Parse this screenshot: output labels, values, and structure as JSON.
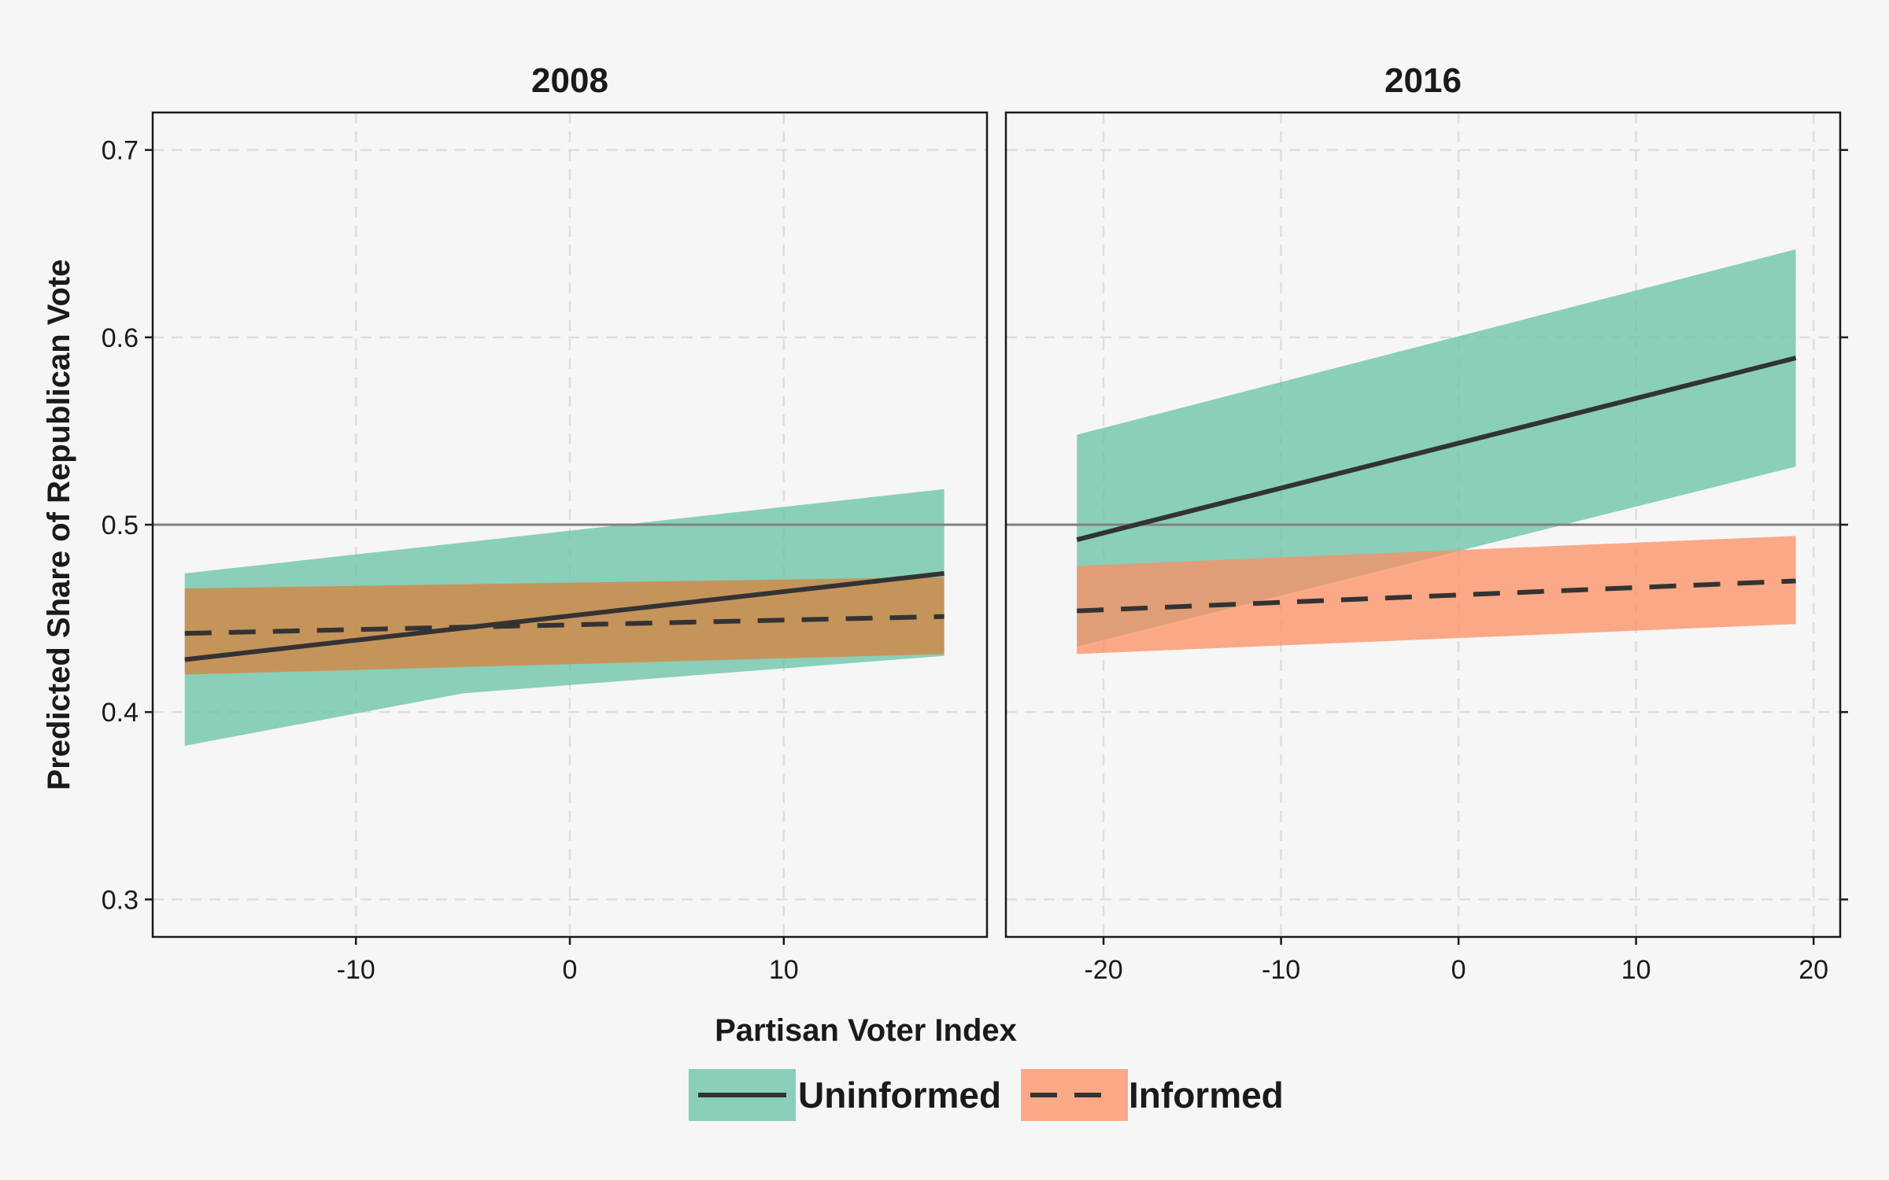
{
  "chart_data": {
    "type": "line",
    "xlabel": "Partisan Voter Index",
    "ylabel": "Predicted Share of Republican Vote",
    "ylim": [
      0.28,
      0.72
    ],
    "yticks": [
      0.3,
      0.4,
      0.5,
      0.6,
      0.7
    ],
    "reference_line_y": 0.5,
    "grid": true,
    "legend": {
      "placement": "bottom",
      "entries": [
        {
          "name": "Uninformed",
          "line": "solid",
          "color": "#66c2a5"
        },
        {
          "name": "Informed",
          "line": "dashed",
          "color": "#fc8d62"
        }
      ]
    },
    "panels": [
      {
        "title": "2008",
        "xlim": [
          -19.5,
          19.5
        ],
        "xticks": [
          -10,
          0,
          10
        ],
        "x": [
          -18,
          17.5
        ],
        "series": [
          {
            "name": "Uninformed",
            "line": "solid",
            "fill": "#66c2a5",
            "y": [
              0.428,
              0.474
            ],
            "lower": [
              0.382,
              0.43
            ],
            "upper": [
              0.474,
              0.519
            ],
            "lower_mid": [
              -5,
              0.41
            ]
          },
          {
            "name": "Informed",
            "line": "dashed",
            "fill": "#cf8a4a",
            "y": [
              0.442,
              0.451
            ],
            "lower": [
              0.42,
              0.431
            ],
            "upper": [
              0.466,
              0.472
            ]
          }
        ]
      },
      {
        "title": "2016",
        "xlim": [
          -25.5,
          21.5
        ],
        "xticks": [
          -20,
          -10,
          0,
          10,
          20
        ],
        "x": [
          -21.5,
          19
        ],
        "series": [
          {
            "name": "Uninformed",
            "line": "solid",
            "fill": "#66c2a5",
            "y": [
              0.492,
              0.589
            ],
            "lower": [
              0.435,
              0.531
            ],
            "upper": [
              0.548,
              0.647
            ]
          },
          {
            "name": "Informed",
            "line": "dashed",
            "fill": "#fc8d62",
            "y": [
              0.454,
              0.47
            ],
            "lower": [
              0.431,
              0.447
            ],
            "upper": [
              0.478,
              0.494
            ]
          }
        ]
      }
    ]
  }
}
